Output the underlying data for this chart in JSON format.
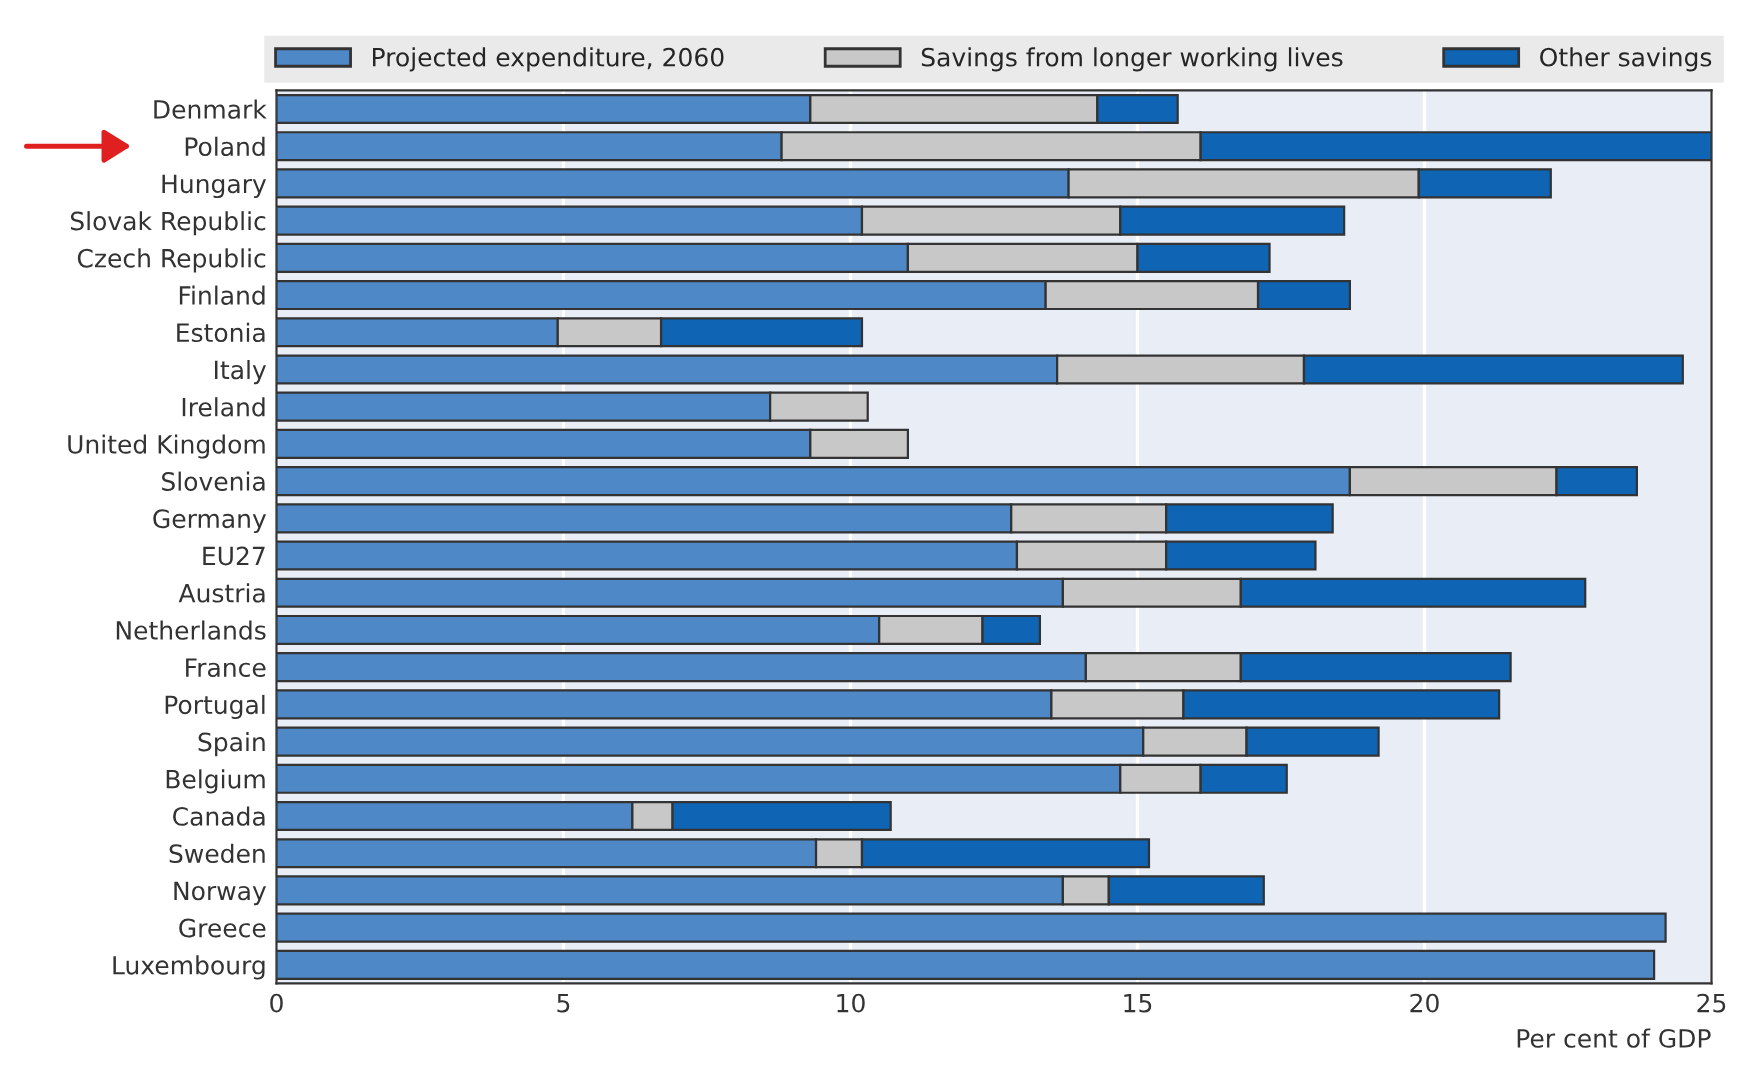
{
  "chart_data": {
    "type": "bar",
    "orientation": "horizontal",
    "stacked": true,
    "categories": [
      "Denmark",
      "Poland",
      "Hungary",
      "Slovak Republic",
      "Czech Republic",
      "Finland",
      "Estonia",
      "Italy",
      "Ireland",
      "United Kingdom",
      "Slovenia",
      "Germany",
      "EU27",
      "Austria",
      "Netherlands",
      "France",
      "Portugal",
      "Spain",
      "Belgium",
      "Canada",
      "Sweden",
      "Norway",
      "Greece",
      "Luxembourg"
    ],
    "series": [
      {
        "name": "Projected expenditure, 2060",
        "color": "#4f88c6",
        "values": [
          9.3,
          8.8,
          13.8,
          10.2,
          11.0,
          13.4,
          4.9,
          13.6,
          8.6,
          9.3,
          18.7,
          12.8,
          12.9,
          13.7,
          10.5,
          14.1,
          13.5,
          15.1,
          14.7,
          6.2,
          9.4,
          13.7,
          24.2,
          24.0
        ]
      },
      {
        "name": "Savings from longer working lives",
        "color": "#c8c8c8",
        "values": [
          5.0,
          7.3,
          6.1,
          4.5,
          4.0,
          3.7,
          1.8,
          4.3,
          1.7,
          1.7,
          3.6,
          2.7,
          2.6,
          3.1,
          1.8,
          2.7,
          2.3,
          1.8,
          1.4,
          0.7,
          0.8,
          0.8,
          null,
          null
        ]
      },
      {
        "name": "Other savings",
        "color": "#0f64b4",
        "values": [
          1.4,
          8.9,
          2.3,
          3.9,
          2.3,
          1.6,
          3.5,
          6.6,
          null,
          null,
          1.4,
          2.9,
          2.6,
          6.0,
          1.0,
          4.7,
          5.5,
          2.3,
          1.5,
          3.8,
          5.0,
          2.7,
          null,
          null
        ]
      }
    ],
    "xlim": [
      0,
      25
    ],
    "xticks": [
      0,
      5,
      10,
      15,
      20,
      25
    ],
    "xlabel": "Per cent of GDP",
    "grid": "x",
    "legend": "top"
  }
}
